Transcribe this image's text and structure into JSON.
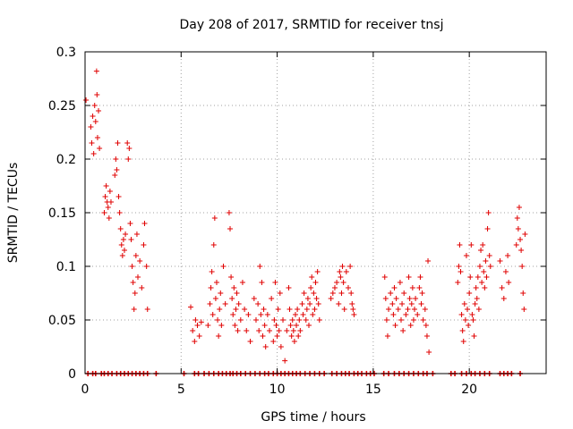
{
  "chart_data": {
    "type": "scatter",
    "title": "Day 208 of 2017, SRMTID for receiver tnsj",
    "xlabel": "GPS time / hours",
    "ylabel": "SRMTID / TECUs",
    "xlim": [
      0,
      24
    ],
    "ylim": [
      0,
      0.3
    ],
    "xticks": [
      0,
      5,
      10,
      15,
      20
    ],
    "yticks": [
      0,
      0.05,
      0.1,
      0.15,
      0.2,
      0.25,
      0.3
    ],
    "ytick_labels": [
      "0",
      "0.05",
      "0.1",
      "0.15",
      "0.2",
      "0.25",
      "0.3"
    ],
    "grid": true,
    "marker": "plus",
    "color": "#e00000",
    "series": [
      {
        "points": [
          [
            0.05,
            0.255
          ],
          [
            0.3,
            0.23
          ],
          [
            0.35,
            0.215
          ],
          [
            0.4,
            0.24
          ],
          [
            0.45,
            0.205
          ],
          [
            0.5,
            0.25
          ],
          [
            0.55,
            0.235
          ],
          [
            0.6,
            0.282
          ],
          [
            0.62,
            0.26
          ],
          [
            0.65,
            0.22
          ],
          [
            0.7,
            0.245
          ],
          [
            0.75,
            0.21
          ],
          [
            1.0,
            0.15
          ],
          [
            1.05,
            0.165
          ],
          [
            1.1,
            0.175
          ],
          [
            1.15,
            0.16
          ],
          [
            1.2,
            0.155
          ],
          [
            1.25,
            0.145
          ],
          [
            1.3,
            0.17
          ],
          [
            1.35,
            0.16
          ],
          [
            1.55,
            0.185
          ],
          [
            1.6,
            0.2
          ],
          [
            1.65,
            0.19
          ],
          [
            1.7,
            0.215
          ],
          [
            1.75,
            0.165
          ],
          [
            1.8,
            0.15
          ],
          [
            1.85,
            0.135
          ],
          [
            1.9,
            0.12
          ],
          [
            1.95,
            0.11
          ],
          [
            2.0,
            0.125
          ],
          [
            2.05,
            0.115
          ],
          [
            2.1,
            0.13
          ],
          [
            2.2,
            0.215
          ],
          [
            2.25,
            0.2
          ],
          [
            2.3,
            0.21
          ],
          [
            2.35,
            0.14
          ],
          [
            2.4,
            0.125
          ],
          [
            2.45,
            0.1
          ],
          [
            2.5,
            0.085
          ],
          [
            2.55,
            0.06
          ],
          [
            2.6,
            0.075
          ],
          [
            2.65,
            0.11
          ],
          [
            2.7,
            0.13
          ],
          [
            2.75,
            0.09
          ],
          [
            2.85,
            0.105
          ],
          [
            2.95,
            0.08
          ],
          [
            3.05,
            0.12
          ],
          [
            3.1,
            0.14
          ],
          [
            3.2,
            0.1
          ],
          [
            3.25,
            0.06
          ],
          [
            5.5,
            0.062
          ],
          [
            5.6,
            0.04
          ],
          [
            5.7,
            0.03
          ],
          [
            5.75,
            0.05
          ],
          [
            5.85,
            0.045
          ],
          [
            5.95,
            0.035
          ],
          [
            6.05,
            0.048
          ],
          [
            6.4,
            0.045
          ],
          [
            6.5,
            0.065
          ],
          [
            6.55,
            0.08
          ],
          [
            6.6,
            0.095
          ],
          [
            6.65,
            0.055
          ],
          [
            6.7,
            0.12
          ],
          [
            6.75,
            0.145
          ],
          [
            6.8,
            0.07
          ],
          [
            6.85,
            0.085
          ],
          [
            6.9,
            0.05
          ],
          [
            6.95,
            0.035
          ],
          [
            7.0,
            0.06
          ],
          [
            7.05,
            0.075
          ],
          [
            7.1,
            0.045
          ],
          [
            7.2,
            0.1
          ],
          [
            7.3,
            0.065
          ],
          [
            7.5,
            0.15
          ],
          [
            7.55,
            0.135
          ],
          [
            7.6,
            0.09
          ],
          [
            7.65,
            0.07
          ],
          [
            7.7,
            0.055
          ],
          [
            7.75,
            0.08
          ],
          [
            7.8,
            0.045
          ],
          [
            7.85,
            0.06
          ],
          [
            7.9,
            0.075
          ],
          [
            7.95,
            0.04
          ],
          [
            8.0,
            0.065
          ],
          [
            8.1,
            0.05
          ],
          [
            8.2,
            0.085
          ],
          [
            8.3,
            0.06
          ],
          [
            8.4,
            0.04
          ],
          [
            8.5,
            0.055
          ],
          [
            8.6,
            0.03
          ],
          [
            8.8,
            0.07
          ],
          [
            8.9,
            0.05
          ],
          [
            9.0,
            0.065
          ],
          [
            9.05,
            0.04
          ],
          [
            9.1,
            0.1
          ],
          [
            9.15,
            0.055
          ],
          [
            9.2,
            0.085
          ],
          [
            9.25,
            0.035
          ],
          [
            9.3,
            0.06
          ],
          [
            9.35,
            0.045
          ],
          [
            9.4,
            0.025
          ],
          [
            9.5,
            0.055
          ],
          [
            9.6,
            0.04
          ],
          [
            9.7,
            0.07
          ],
          [
            9.8,
            0.03
          ],
          [
            9.85,
            0.05
          ],
          [
            9.9,
            0.085
          ],
          [
            9.95,
            0.045
          ],
          [
            10.0,
            0.035
          ],
          [
            10.05,
            0.06
          ],
          [
            10.1,
            0.04
          ],
          [
            10.15,
            0.075
          ],
          [
            10.2,
            0.025
          ],
          [
            10.3,
            0.05
          ],
          [
            10.4,
            0.012
          ],
          [
            10.5,
            0.04
          ],
          [
            10.6,
            0.08
          ],
          [
            10.65,
            0.06
          ],
          [
            10.7,
            0.045
          ],
          [
            10.75,
            0.035
          ],
          [
            10.8,
            0.05
          ],
          [
            10.85,
            0.04
          ],
          [
            10.9,
            0.03
          ],
          [
            10.95,
            0.055
          ],
          [
            11.0,
            0.045
          ],
          [
            11.05,
            0.06
          ],
          [
            11.1,
            0.035
          ],
          [
            11.15,
            0.05
          ],
          [
            11.2,
            0.04
          ],
          [
            11.3,
            0.065
          ],
          [
            11.35,
            0.055
          ],
          [
            11.4,
            0.075
          ],
          [
            11.5,
            0.05
          ],
          [
            11.55,
            0.06
          ],
          [
            11.6,
            0.07
          ],
          [
            11.65,
            0.045
          ],
          [
            11.7,
            0.065
          ],
          [
            11.75,
            0.08
          ],
          [
            11.8,
            0.09
          ],
          [
            11.85,
            0.055
          ],
          [
            11.9,
            0.075
          ],
          [
            11.95,
            0.06
          ],
          [
            12.0,
            0.085
          ],
          [
            12.05,
            0.07
          ],
          [
            12.1,
            0.095
          ],
          [
            12.15,
            0.065
          ],
          [
            12.2,
            0.05
          ],
          [
            12.8,
            0.07
          ],
          [
            12.9,
            0.075
          ],
          [
            13.0,
            0.08
          ],
          [
            13.1,
            0.085
          ],
          [
            13.2,
            0.065
          ],
          [
            13.25,
            0.095
          ],
          [
            13.3,
            0.09
          ],
          [
            13.35,
            0.075
          ],
          [
            13.4,
            0.1
          ],
          [
            13.45,
            0.085
          ],
          [
            13.5,
            0.06
          ],
          [
            13.6,
            0.095
          ],
          [
            13.7,
            0.08
          ],
          [
            13.8,
            0.1
          ],
          [
            13.85,
            0.075
          ],
          [
            13.9,
            0.065
          ],
          [
            13.95,
            0.06
          ],
          [
            14.0,
            0.055
          ],
          [
            15.6,
            0.09
          ],
          [
            15.65,
            0.07
          ],
          [
            15.7,
            0.05
          ],
          [
            15.75,
            0.035
          ],
          [
            15.8,
            0.06
          ],
          [
            15.9,
            0.075
          ],
          [
            16.0,
            0.065
          ],
          [
            16.05,
            0.055
          ],
          [
            16.1,
            0.08
          ],
          [
            16.15,
            0.045
          ],
          [
            16.2,
            0.07
          ],
          [
            16.3,
            0.06
          ],
          [
            16.4,
            0.085
          ],
          [
            16.45,
            0.05
          ],
          [
            16.5,
            0.065
          ],
          [
            16.55,
            0.04
          ],
          [
            16.6,
            0.075
          ],
          [
            16.7,
            0.055
          ],
          [
            16.8,
            0.06
          ],
          [
            16.85,
            0.09
          ],
          [
            16.9,
            0.07
          ],
          [
            16.95,
            0.045
          ],
          [
            17.0,
            0.065
          ],
          [
            17.05,
            0.08
          ],
          [
            17.1,
            0.05
          ],
          [
            17.15,
            0.06
          ],
          [
            17.2,
            0.07
          ],
          [
            17.3,
            0.055
          ],
          [
            17.4,
            0.08
          ],
          [
            17.45,
            0.09
          ],
          [
            17.5,
            0.065
          ],
          [
            17.55,
            0.075
          ],
          [
            17.6,
            0.05
          ],
          [
            17.7,
            0.06
          ],
          [
            17.75,
            0.045
          ],
          [
            17.8,
            0.035
          ],
          [
            17.85,
            0.105
          ],
          [
            17.9,
            0.02
          ],
          [
            19.4,
            0.085
          ],
          [
            19.45,
            0.1
          ],
          [
            19.5,
            0.12
          ],
          [
            19.55,
            0.095
          ],
          [
            19.6,
            0.055
          ],
          [
            19.65,
            0.04
          ],
          [
            19.7,
            0.03
          ],
          [
            19.75,
            0.065
          ],
          [
            19.8,
            0.05
          ],
          [
            19.85,
            0.11
          ],
          [
            19.9,
            0.06
          ],
          [
            19.95,
            0.045
          ],
          [
            20.0,
            0.075
          ],
          [
            20.05,
            0.09
          ],
          [
            20.1,
            0.12
          ],
          [
            20.15,
            0.055
          ],
          [
            20.2,
            0.05
          ],
          [
            20.25,
            0.035
          ],
          [
            20.3,
            0.065
          ],
          [
            20.35,
            0.08
          ],
          [
            20.4,
            0.07
          ],
          [
            20.45,
            0.09
          ],
          [
            20.5,
            0.06
          ],
          [
            20.55,
            0.1
          ],
          [
            20.6,
            0.115
          ],
          [
            20.65,
            0.085
          ],
          [
            20.7,
            0.12
          ],
          [
            20.75,
            0.095
          ],
          [
            20.8,
            0.08
          ],
          [
            20.85,
            0.105
          ],
          [
            20.9,
            0.09
          ],
          [
            20.95,
            0.135
          ],
          [
            21.0,
            0.15
          ],
          [
            21.05,
            0.11
          ],
          [
            21.1,
            0.1
          ],
          [
            21.6,
            0.105
          ],
          [
            21.7,
            0.08
          ],
          [
            21.8,
            0.07
          ],
          [
            21.9,
            0.095
          ],
          [
            22.0,
            0.11
          ],
          [
            22.05,
            0.085
          ],
          [
            22.45,
            0.12
          ],
          [
            22.5,
            0.145
          ],
          [
            22.55,
            0.135
          ],
          [
            22.6,
            0.155
          ],
          [
            22.65,
            0.125
          ],
          [
            22.7,
            0.115
          ],
          [
            22.75,
            0.1
          ],
          [
            22.8,
            0.075
          ],
          [
            22.85,
            0.06
          ],
          [
            22.9,
            0.13
          ]
        ]
      }
    ],
    "zero_points_x": [
      0.15,
      0.4,
      0.55,
      0.85,
      1.0,
      1.2,
      1.4,
      1.65,
      1.85,
      2.05,
      2.25,
      2.45,
      2.65,
      2.85,
      3.05,
      3.25,
      3.7,
      5.15,
      5.7,
      5.9,
      6.2,
      6.45,
      6.7,
      6.95,
      7.15,
      7.35,
      7.55,
      7.7,
      7.9,
      8.1,
      8.35,
      8.6,
      8.85,
      9.1,
      9.35,
      9.55,
      9.8,
      10.0,
      10.2,
      10.4,
      10.6,
      10.8,
      11.0,
      11.2,
      11.45,
      11.7,
      11.95,
      12.2,
      12.45,
      12.85,
      13.1,
      13.35,
      13.55,
      13.75,
      14.0,
      14.2,
      14.4,
      14.65,
      14.85,
      15.05,
      15.55,
      15.8,
      16.1,
      16.35,
      16.6,
      16.85,
      17.1,
      17.35,
      17.6,
      17.8,
      18.1,
      19.05,
      19.25,
      19.6,
      19.85,
      20.1,
      20.3,
      20.55,
      20.8,
      21.05,
      21.6,
      21.8,
      22.0,
      22.2,
      22.65
    ]
  }
}
